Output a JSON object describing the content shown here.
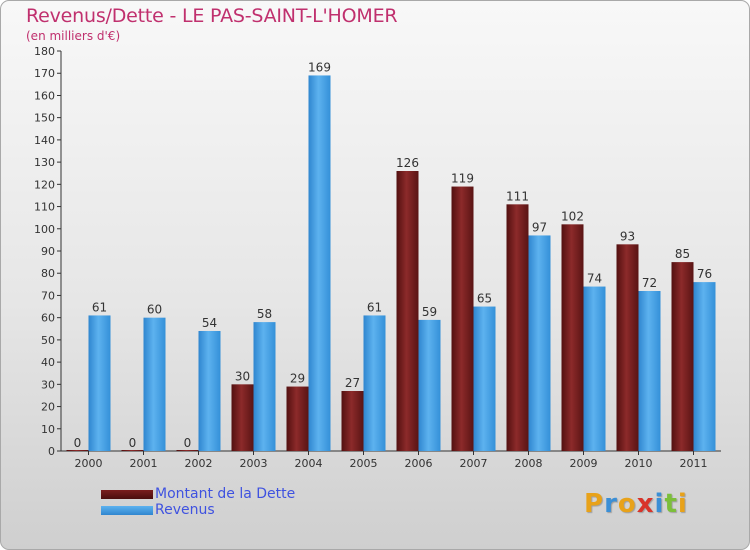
{
  "title": "Revenus/Dette - LE PAS-SAINT-L'HOMER",
  "subtitle": "(en milliers d'€)",
  "colors": {
    "title": "#c0306e",
    "debt": "#6e1a1a",
    "revenue": "#4aa3e6",
    "legend_text": "#3f52e0"
  },
  "chart_data": {
    "type": "bar",
    "categories": [
      "2000",
      "2001",
      "2002",
      "2003",
      "2004",
      "2005",
      "2006",
      "2007",
      "2008",
      "2009",
      "2010",
      "2011"
    ],
    "series": [
      {
        "name": "Montant de la Dette",
        "values": [
          0,
          0,
          0,
          30,
          29,
          27,
          126,
          119,
          111,
          102,
          93,
          85
        ]
      },
      {
        "name": "Revenus",
        "values": [
          61,
          60,
          54,
          58,
          169,
          61,
          59,
          65,
          97,
          74,
          72,
          76
        ]
      }
    ],
    "ylim": [
      0,
      180
    ],
    "yticks": [
      0,
      10,
      20,
      30,
      40,
      50,
      60,
      70,
      80,
      90,
      100,
      110,
      120,
      130,
      140,
      150,
      160,
      170,
      180
    ],
    "grid": false,
    "legend_position": "bottom-left"
  },
  "logo": {
    "letters": [
      "P",
      "r",
      "o",
      "x",
      "i",
      "t",
      "i"
    ],
    "colors": [
      "#e8a21a",
      "#3b8fd6",
      "#e8a21a",
      "#d8342a",
      "#3b8fd6",
      "#7cbf3a",
      "#e8a21a"
    ]
  }
}
